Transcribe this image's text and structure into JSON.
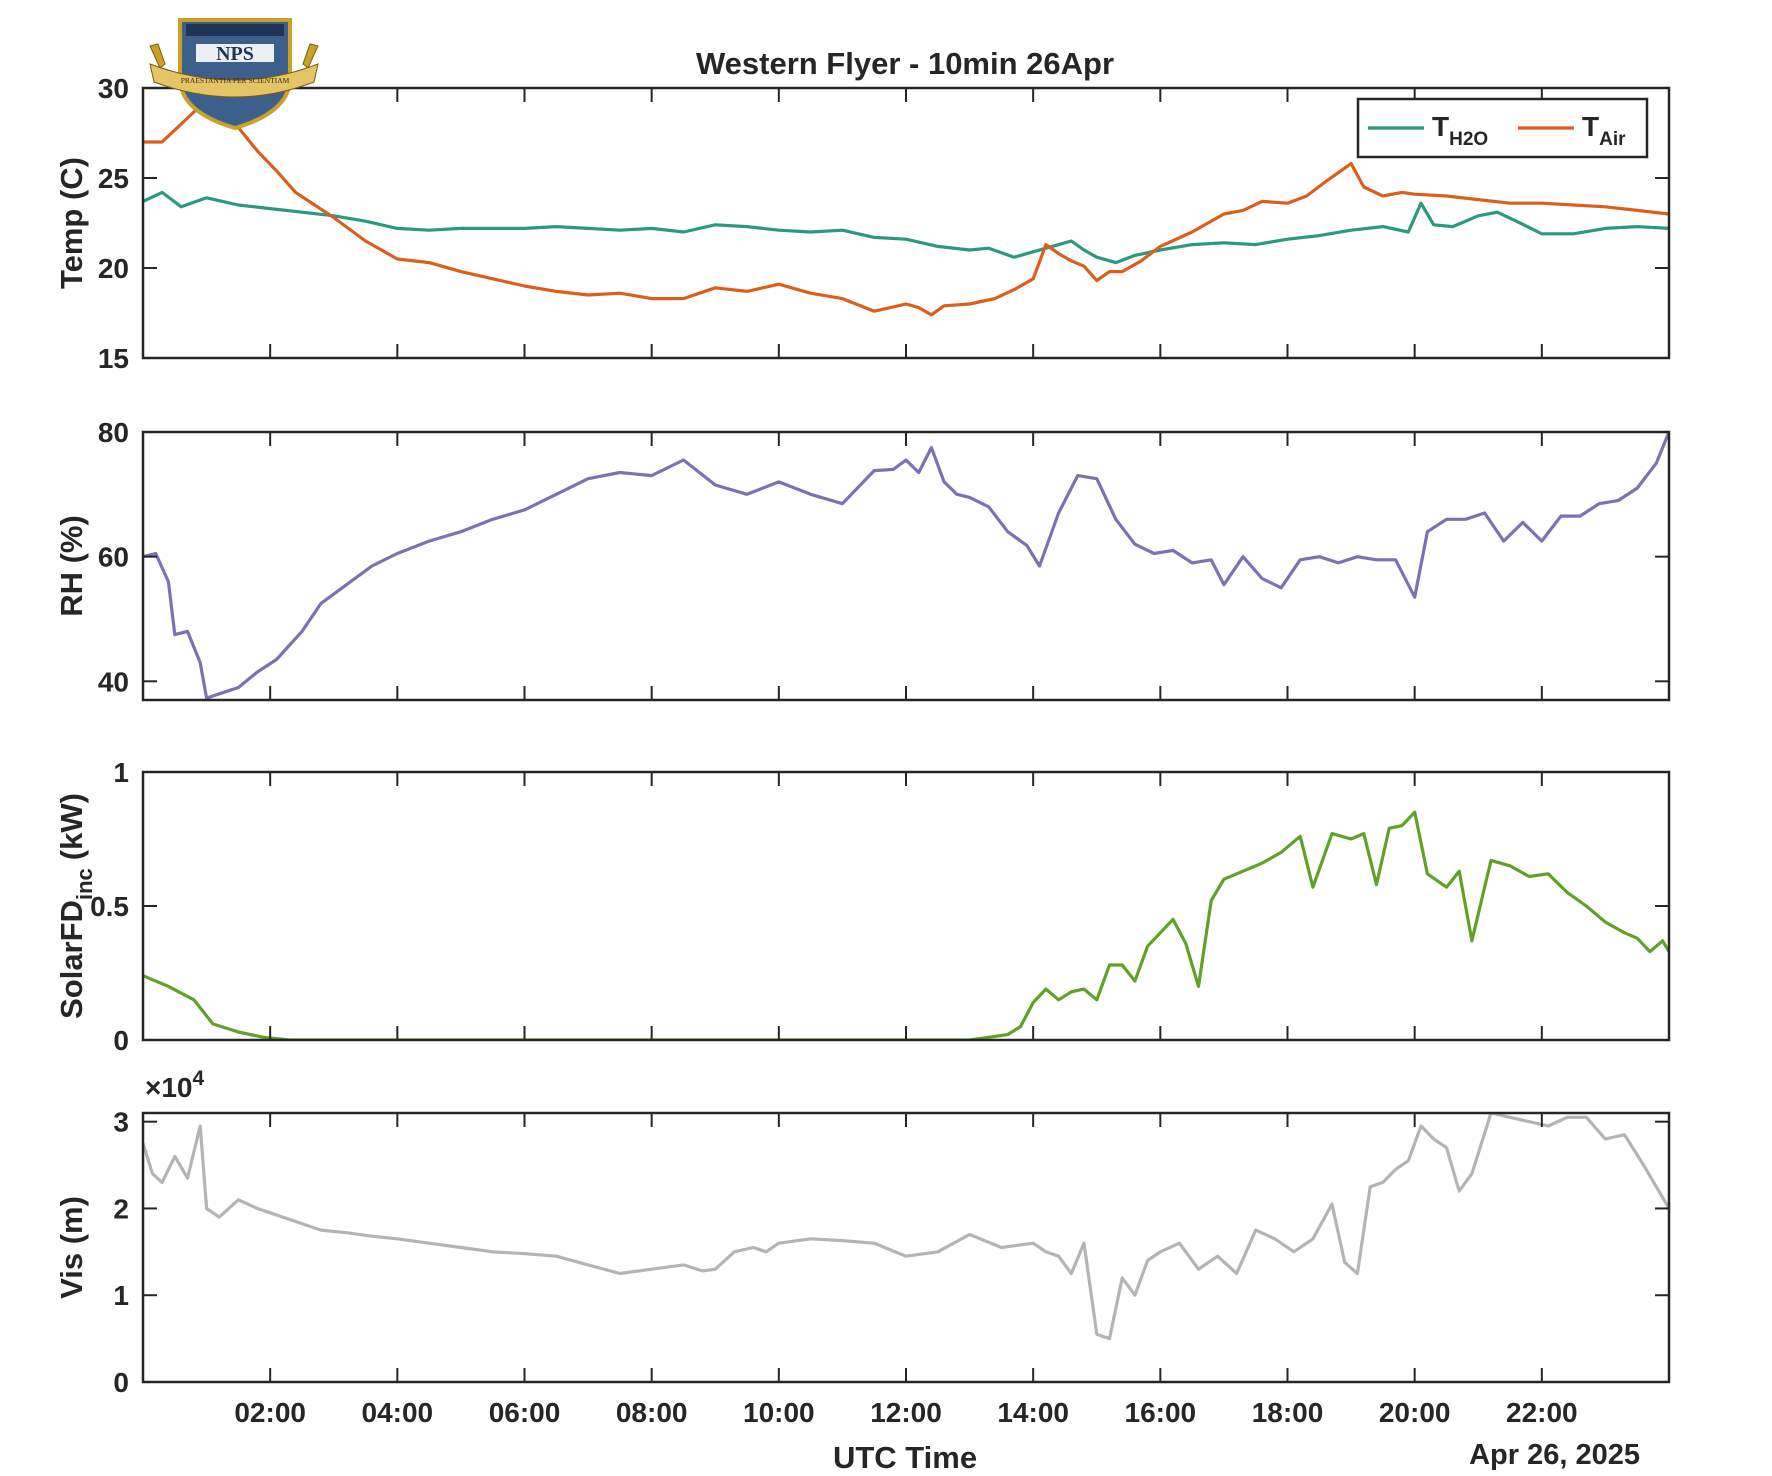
{
  "figure": {
    "title": "Western Flyer - 10min 26Apr",
    "xlabel": "UTC Time",
    "date_label": "Apr 26, 2025",
    "logo": {
      "text": "NPS",
      "motto": "PRAESTANTIA PER SCIENTIAM"
    }
  },
  "chart_data": [
    {
      "type": "line",
      "ylabel": "Temp (C)",
      "ylim": [
        15,
        30
      ],
      "yticks": [
        "15",
        "20",
        "25",
        "30"
      ],
      "xlim_hours": [
        0,
        24
      ],
      "xticks": [
        "02:00",
        "04:00",
        "06:00",
        "08:00",
        "10:00",
        "12:00",
        "14:00",
        "16:00",
        "18:00",
        "20:00",
        "22:00"
      ],
      "legend": {
        "placement": "top-right",
        "entries": [
          {
            "base": "T",
            "sub": "H2O"
          },
          {
            "base": "T",
            "sub": "Air"
          }
        ]
      },
      "series": [
        {
          "name": "TH2O",
          "color": "#2a9a7e",
          "x": [
            0,
            0.3,
            0.6,
            1,
            1.5,
            2,
            2.5,
            3,
            3.5,
            4,
            4.5,
            5,
            5.5,
            6,
            6.5,
            7,
            7.5,
            8,
            8.5,
            9,
            9.5,
            10,
            10.5,
            11,
            11.5,
            12,
            12.5,
            13,
            13.3,
            13.7,
            14,
            14.3,
            14.6,
            14.8,
            15,
            15.3,
            15.6,
            16,
            16.5,
            17,
            17.5,
            18,
            18.5,
            19,
            19.5,
            19.9,
            20.1,
            20.3,
            20.6,
            21,
            21.3,
            21.6,
            22,
            22.5,
            23,
            23.5,
            24
          ],
          "y": [
            23.7,
            24.2,
            23.4,
            23.9,
            23.5,
            23.3,
            23.1,
            22.9,
            22.6,
            22.2,
            22.1,
            22.2,
            22.2,
            22.2,
            22.3,
            22.2,
            22.1,
            22.2,
            22.0,
            22.4,
            22.3,
            22.1,
            22.0,
            22.1,
            21.7,
            21.6,
            21.2,
            21.0,
            21.1,
            20.6,
            20.9,
            21.2,
            21.5,
            21.0,
            20.6,
            20.3,
            20.7,
            21.0,
            21.3,
            21.4,
            21.3,
            21.6,
            21.8,
            22.1,
            22.3,
            22.0,
            23.6,
            22.4,
            22.3,
            22.9,
            23.1,
            22.6,
            21.9,
            21.9,
            22.2,
            22.3,
            22.2
          ]
        },
        {
          "name": "TAir",
          "color": "#d95f1b",
          "x": [
            0,
            0.3,
            0.6,
            0.9,
            1.1,
            1.3,
            1.5,
            1.8,
            2.1,
            2.4,
            2.7,
            3,
            3.5,
            4,
            4.5,
            5,
            5.5,
            6,
            6.5,
            7,
            7.5,
            8,
            8.5,
            9,
            9.5,
            10,
            10.5,
            11,
            11.5,
            12,
            12.2,
            12.4,
            12.6,
            13,
            13.4,
            13.7,
            14,
            14.2,
            14.4,
            14.6,
            14.8,
            15,
            15.2,
            15.4,
            15.7,
            16,
            16.5,
            17,
            17.3,
            17.6,
            18,
            18.3,
            18.6,
            19,
            19.2,
            19.5,
            19.8,
            20,
            20.5,
            21,
            21.5,
            22,
            22.5,
            23,
            23.5,
            24
          ],
          "y": [
            27.0,
            27.0,
            28.0,
            29.0,
            28.8,
            28.5,
            27.8,
            26.5,
            25.4,
            24.2,
            23.5,
            22.8,
            21.5,
            20.5,
            20.3,
            19.8,
            19.4,
            19.0,
            18.7,
            18.5,
            18.6,
            18.3,
            18.3,
            18.9,
            18.7,
            19.1,
            18.6,
            18.3,
            17.6,
            18.0,
            17.8,
            17.4,
            17.9,
            18.0,
            18.3,
            18.8,
            19.4,
            21.3,
            20.8,
            20.4,
            20.1,
            19.3,
            19.8,
            19.8,
            20.4,
            21.2,
            22.0,
            23.0,
            23.2,
            23.7,
            23.6,
            24.0,
            24.8,
            25.8,
            24.5,
            24.0,
            24.2,
            24.1,
            24.0,
            23.8,
            23.6,
            23.6,
            23.5,
            23.4,
            23.2,
            23.0
          ]
        }
      ]
    },
    {
      "type": "line",
      "ylabel": "RH (%)",
      "ylim": [
        37,
        80
      ],
      "yticks": [
        "40",
        "60",
        "80"
      ],
      "series": [
        {
          "name": "RH",
          "color": "#7b72b4",
          "x": [
            0,
            0.2,
            0.4,
            0.5,
            0.7,
            0.9,
            1.0,
            1.2,
            1.5,
            1.8,
            2.1,
            2.5,
            2.8,
            3.2,
            3.6,
            4,
            4.5,
            5,
            5.5,
            6,
            6.5,
            7,
            7.5,
            8,
            8.5,
            9,
            9.5,
            10,
            10.5,
            11,
            11.5,
            11.8,
            12.0,
            12.2,
            12.4,
            12.6,
            12.8,
            13.0,
            13.3,
            13.6,
            13.9,
            14.1,
            14.4,
            14.7,
            15.0,
            15.3,
            15.6,
            15.9,
            16.2,
            16.5,
            16.8,
            17.0,
            17.3,
            17.6,
            17.9,
            18.2,
            18.5,
            18.8,
            19.1,
            19.4,
            19.7,
            20.0,
            20.2,
            20.5,
            20.8,
            21.1,
            21.4,
            21.7,
            22.0,
            22.3,
            22.6,
            22.9,
            23.2,
            23.5,
            23.8,
            24.0
          ],
          "y": [
            60,
            60.5,
            56,
            47.5,
            48,
            43,
            37.3,
            38,
            39,
            41.5,
            43.5,
            48,
            52.5,
            55.5,
            58.5,
            60.5,
            62.5,
            64,
            66,
            67.5,
            70,
            72.5,
            73.5,
            73,
            75.5,
            71.5,
            70,
            72,
            70,
            68.5,
            73.8,
            74,
            75.5,
            73.5,
            77.5,
            72,
            70,
            69.5,
            68,
            64,
            61.8,
            58.5,
            67,
            73,
            72.5,
            66,
            62,
            60.5,
            61,
            59,
            59.5,
            55.5,
            60,
            56.5,
            55,
            59.5,
            60,
            59,
            60,
            59.5,
            59.5,
            53.5,
            64,
            66,
            66,
            67,
            62.5,
            65.5,
            62.5,
            66.5,
            66.5,
            68.5,
            69,
            71,
            75,
            80
          ]
        }
      ]
    },
    {
      "type": "line",
      "ylabel": "SolarFD",
      "ylabel_sub": "inc",
      "ylabel_unit": "(kW)",
      "ylim": [
        0,
        1
      ],
      "yticks": [
        "0",
        "0.5",
        "1"
      ],
      "series": [
        {
          "name": "SolarFD",
          "color": "#5fa227",
          "x": [
            0,
            0.4,
            0.8,
            1.1,
            1.5,
            1.9,
            2.3,
            3,
            5,
            8,
            10,
            12,
            12.5,
            12.8,
            13.0,
            13.3,
            13.6,
            13.8,
            14.0,
            14.2,
            14.4,
            14.6,
            14.8,
            15.0,
            15.2,
            15.4,
            15.6,
            15.8,
            16.0,
            16.2,
            16.4,
            16.6,
            16.8,
            17.0,
            17.3,
            17.6,
            17.9,
            18.0,
            18.2,
            18.4,
            18.7,
            19.0,
            19.2,
            19.4,
            19.6,
            19.8,
            20.0,
            20.2,
            20.5,
            20.7,
            20.9,
            21.2,
            21.5,
            21.8,
            22.1,
            22.4,
            22.7,
            23.0,
            23.3,
            23.5,
            23.7,
            23.9,
            24.0
          ],
          "y": [
            0.24,
            0.2,
            0.15,
            0.06,
            0.03,
            0.01,
            0,
            0,
            0,
            0,
            0,
            0,
            0,
            0,
            0,
            0.01,
            0.02,
            0.05,
            0.14,
            0.19,
            0.15,
            0.18,
            0.19,
            0.15,
            0.28,
            0.28,
            0.22,
            0.35,
            0.4,
            0.45,
            0.36,
            0.2,
            0.52,
            0.6,
            0.63,
            0.66,
            0.7,
            0.72,
            0.76,
            0.57,
            0.77,
            0.75,
            0.77,
            0.58,
            0.79,
            0.8,
            0.85,
            0.62,
            0.57,
            0.63,
            0.37,
            0.67,
            0.65,
            0.61,
            0.62,
            0.55,
            0.5,
            0.44,
            0.4,
            0.38,
            0.33,
            0.37,
            0.33
          ]
        }
      ]
    },
    {
      "type": "line",
      "ylabel": "Vis (m)",
      "ylim": [
        0,
        31000
      ],
      "yticks": [
        "0",
        "1",
        "2",
        "3"
      ],
      "exponent_label": "×10",
      "exponent_power": "4",
      "series": [
        {
          "name": "Vis",
          "color": "#b4b4b4",
          "x": [
            0,
            0.15,
            0.3,
            0.5,
            0.7,
            0.9,
            1.0,
            1.2,
            1.5,
            1.8,
            2.0,
            2.4,
            2.8,
            3.2,
            3.6,
            4,
            4.5,
            5,
            5.5,
            6,
            6.5,
            7,
            7.5,
            8,
            8.5,
            8.8,
            9,
            9.3,
            9.6,
            9.8,
            10,
            10.5,
            11,
            11.5,
            12,
            12.5,
            13,
            13.5,
            14,
            14.2,
            14.4,
            14.6,
            14.8,
            15,
            15.2,
            15.4,
            15.6,
            15.8,
            16,
            16.3,
            16.6,
            16.9,
            17.2,
            17.5,
            17.8,
            18.1,
            18.4,
            18.7,
            18.9,
            19.1,
            19.3,
            19.5,
            19.7,
            19.9,
            20.1,
            20.3,
            20.5,
            20.7,
            20.9,
            21.2,
            21.5,
            21.8,
            22.1,
            22.4,
            22.7,
            23.0,
            23.3,
            23.6,
            24.0
          ],
          "y": [
            27500,
            24000,
            23000,
            26000,
            23500,
            29500,
            20000,
            19000,
            21000,
            20000,
            19500,
            18500,
            17500,
            17200,
            16800,
            16500,
            16000,
            15500,
            15000,
            14800,
            14500,
            13500,
            12500,
            13000,
            13500,
            12800,
            13000,
            15000,
            15500,
            15000,
            16000,
            16500,
            16300,
            16000,
            14500,
            15000,
            17000,
            15500,
            16000,
            15000,
            14500,
            12500,
            16000,
            5500,
            5000,
            12000,
            10000,
            14000,
            15000,
            16000,
            13000,
            14500,
            12500,
            17500,
            16500,
            15000,
            16500,
            20500,
            13800,
            12500,
            22500,
            23000,
            24500,
            25500,
            29500,
            28000,
            27000,
            22000,
            24000,
            31000,
            30500,
            30000,
            29500,
            30500,
            30500,
            28000,
            28500,
            25000,
            20000
          ]
        }
      ]
    }
  ]
}
